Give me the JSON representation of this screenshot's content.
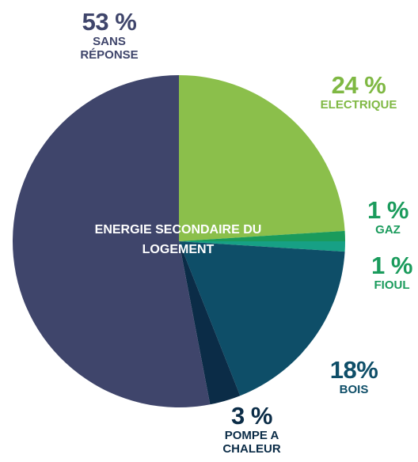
{
  "chart_data": {
    "type": "pie",
    "title": "ENERGIE SECONDAIRE DU LOGEMENT",
    "categories": [
      "ELECTRIQUE",
      "GAZ",
      "FIOUL",
      "BOIS",
      "POMPE A CHALEUR",
      "SANS RÉPONSE"
    ],
    "values": [
      24,
      1,
      1,
      18,
      3,
      53
    ],
    "value_labels": [
      "24 %",
      "1 %",
      "1 %",
      "18%",
      "3 %",
      "53 %"
    ],
    "colors": [
      "#8bbf4b",
      "#1a9b5c",
      "#17a085",
      "#0e4e68",
      "#0b2c47",
      "#3f456b"
    ]
  }
}
